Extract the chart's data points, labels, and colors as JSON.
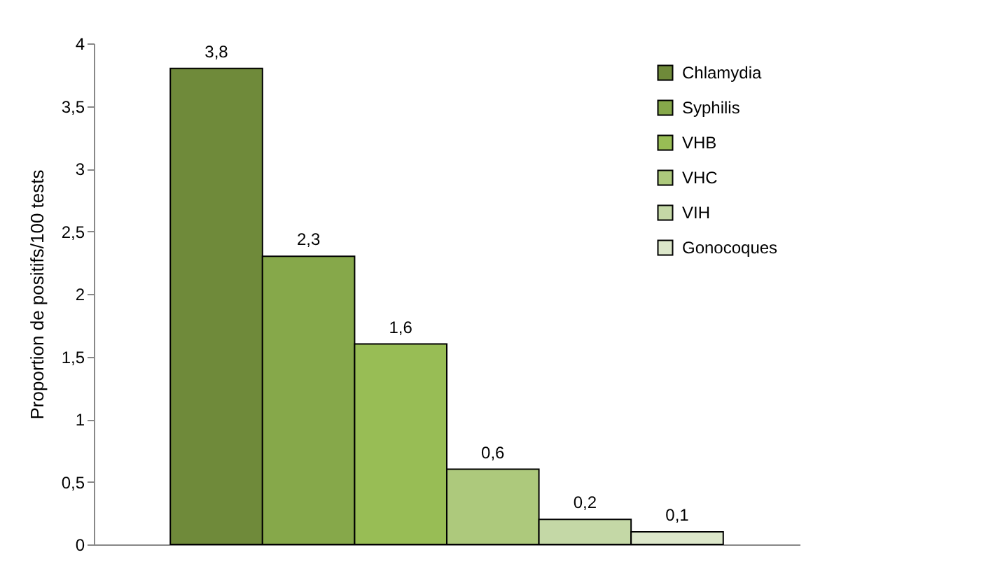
{
  "chart_data": {
    "type": "bar",
    "ylabel": "Proportion de positifs/100 tests",
    "categories": [
      null,
      null,
      null,
      null,
      null,
      null
    ],
    "stacked": true,
    "series": [
      {
        "name": "Chlamydia",
        "color": "#6f8a3a",
        "values": [
          3.8,
          null,
          null,
          null,
          null,
          null
        ],
        "value_labels": [
          "3,8",
          null,
          null,
          null,
          null,
          null
        ]
      },
      {
        "name": "Syphilis",
        "color": "#86a84a",
        "values": [
          null,
          2.3,
          null,
          null,
          null,
          null
        ],
        "value_labels": [
          null,
          "2,3",
          null,
          null,
          null,
          null
        ]
      },
      {
        "name": "VHB",
        "color": "#98bd55",
        "values": [
          null,
          null,
          1.6,
          null,
          null,
          null
        ],
        "value_labels": [
          null,
          null,
          "1,6",
          null,
          null,
          null
        ]
      },
      {
        "name": "VHC",
        "color": "#adc97c",
        "values": [
          null,
          null,
          null,
          0.6,
          null,
          null
        ],
        "value_labels": [
          null,
          null,
          null,
          "0,6",
          null,
          null
        ]
      },
      {
        "name": "VIH",
        "color": "#c4d8a6",
        "values": [
          null,
          null,
          null,
          null,
          0.2,
          null
        ],
        "value_labels": [
          null,
          null,
          null,
          null,
          "0,2",
          null
        ]
      },
      {
        "name": "Gonocoques",
        "color": "#dce7ca",
        "values": [
          null,
          null,
          null,
          null,
          null,
          0.1
        ],
        "value_labels": [
          null,
          null,
          null,
          null,
          null,
          "0,1"
        ]
      }
    ],
    "ylim": [
      0,
      4
    ],
    "yticks": [
      0,
      {
        "value": 0.5,
        "label": "0,5"
      },
      1,
      {
        "value": 1.5,
        "label": "1,5"
      },
      2,
      {
        "value": 2.5,
        "label": "2,5"
      },
      3,
      {
        "value": 3.5,
        "label": "3,5"
      },
      4
    ],
    "tick_labels": "y",
    "grid": false,
    "legend": "top right"
  }
}
